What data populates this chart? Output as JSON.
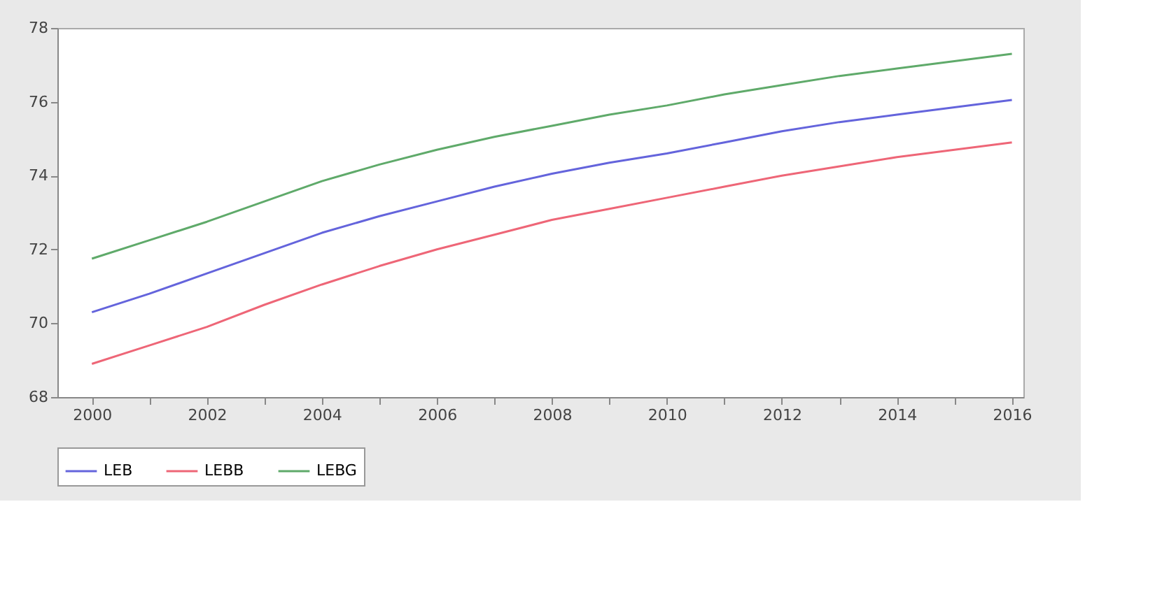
{
  "chart_data": {
    "type": "line",
    "x": [
      2000,
      2001,
      2002,
      2003,
      2004,
      2005,
      2006,
      2007,
      2008,
      2009,
      2010,
      2011,
      2012,
      2013,
      2014,
      2015,
      2016
    ],
    "series": [
      {
        "name": "LEB",
        "color": "#6464dc",
        "values": [
          70.3,
          70.8,
          71.35,
          71.9,
          72.45,
          72.9,
          73.3,
          73.7,
          74.05,
          74.35,
          74.6,
          74.9,
          75.2,
          75.45,
          75.65,
          75.85,
          76.05
        ]
      },
      {
        "name": "LEBB",
        "color": "#ee6677",
        "values": [
          68.9,
          69.4,
          69.9,
          70.5,
          71.05,
          71.55,
          72.0,
          72.4,
          72.8,
          73.1,
          73.4,
          73.7,
          74.0,
          74.25,
          74.5,
          74.7,
          74.9
        ]
      },
      {
        "name": "LEBG",
        "color": "#5faa6a",
        "values": [
          71.75,
          72.25,
          72.75,
          73.3,
          73.85,
          74.3,
          74.7,
          75.05,
          75.35,
          75.65,
          75.9,
          76.2,
          76.45,
          76.7,
          76.9,
          77.1,
          77.3
        ]
      }
    ],
    "xlim": [
      1999.4,
      2016.2
    ],
    "xticks": [
      2000,
      {
        "value": 2001,
        "label": null
      },
      2002,
      {
        "value": 2003,
        "label": null
      },
      2004,
      {
        "value": 2005,
        "label": null
      },
      2006,
      {
        "value": 2007,
        "label": null
      },
      2008,
      {
        "value": 2009,
        "label": null
      },
      2010,
      {
        "value": 2011,
        "label": null
      },
      2012,
      {
        "value": 2013,
        "label": null
      },
      2014,
      {
        "value": 2015,
        "label": null
      },
      2016
    ],
    "ylim": [
      68,
      78
    ],
    "yticks": [
      68,
      70,
      72,
      74,
      76,
      78
    ],
    "grid": false,
    "legend": "bottom",
    "marker": "none",
    "line_style": "solid"
  }
}
